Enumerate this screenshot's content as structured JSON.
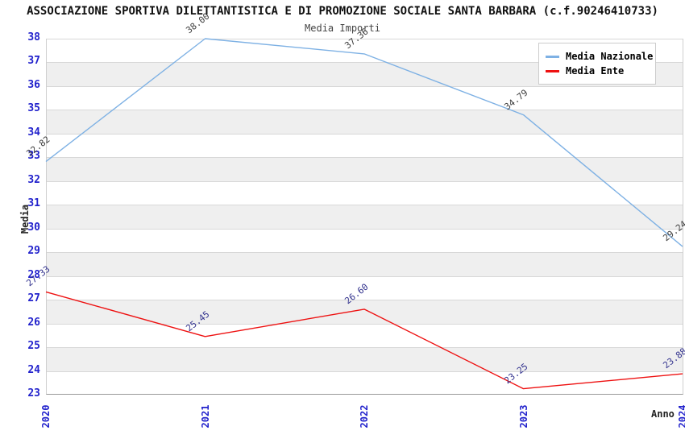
{
  "page": {
    "title": "ASSOCIAZIONE SPORTIVA DILETTANTISTICA E DI PROMOZIONE SOCIALE SANTA BARBARA (c.f.90246410733)"
  },
  "chart_data": {
    "type": "line",
    "title": "Media Importi",
    "xlabel": "Anno",
    "ylabel": "Media",
    "x": [
      2020,
      2021,
      2022,
      2023,
      2024
    ],
    "xtick_labels": [
      "2020",
      "2021",
      "2022",
      "2023",
      "2024"
    ],
    "ylim": [
      23,
      38
    ],
    "ytick_step": 1,
    "ytick_labels": [
      "38",
      "37",
      "36",
      "35",
      "34",
      "33",
      "32",
      "31",
      "30",
      "29",
      "28",
      "27",
      "26",
      "25",
      "24",
      "23"
    ],
    "grid": true,
    "banded_background": true,
    "legend_position": "top-right",
    "series": [
      {
        "name": "Media Nazionale",
        "color": "#7eb1e4",
        "label_color": "#3d3d3d",
        "values": [
          32.82,
          38.0,
          37.36,
          34.79,
          29.24
        ],
        "labels": [
          "32.82",
          "38.00",
          "37.36",
          "34.79",
          "29.24"
        ]
      },
      {
        "name": "Media Ente",
        "color": "#ee1111",
        "label_color": "#32328e",
        "values": [
          27.33,
          25.45,
          26.6,
          23.25,
          23.88
        ],
        "labels": [
          "27.33",
          "25.45",
          "26.60",
          "23.25",
          "23.88"
        ]
      }
    ],
    "colors": {
      "tick_label": "#2222cc",
      "band_gray": "#efefef",
      "gridline": "#d8d8d8"
    }
  }
}
